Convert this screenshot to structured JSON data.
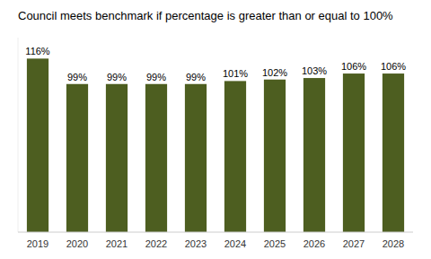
{
  "chart_data": {
    "type": "bar",
    "title": "Council meets benchmark if percentage is greater than or equal to 100%",
    "categories": [
      "2019",
      "2020",
      "2021",
      "2022",
      "2023",
      "2024",
      "2025",
      "2026",
      "2027",
      "2028"
    ],
    "values": [
      116,
      99,
      99,
      99,
      99,
      101,
      102,
      103,
      106,
      106
    ],
    "value_labels": [
      "116%",
      "99%",
      "99%",
      "99%",
      "99%",
      "101%",
      "102%",
      "103%",
      "106%",
      "106%"
    ],
    "color": "#4d5e20",
    "ylim": [
      0,
      130
    ],
    "data_labels": true,
    "tick_labels": "x",
    "grid": false
  }
}
